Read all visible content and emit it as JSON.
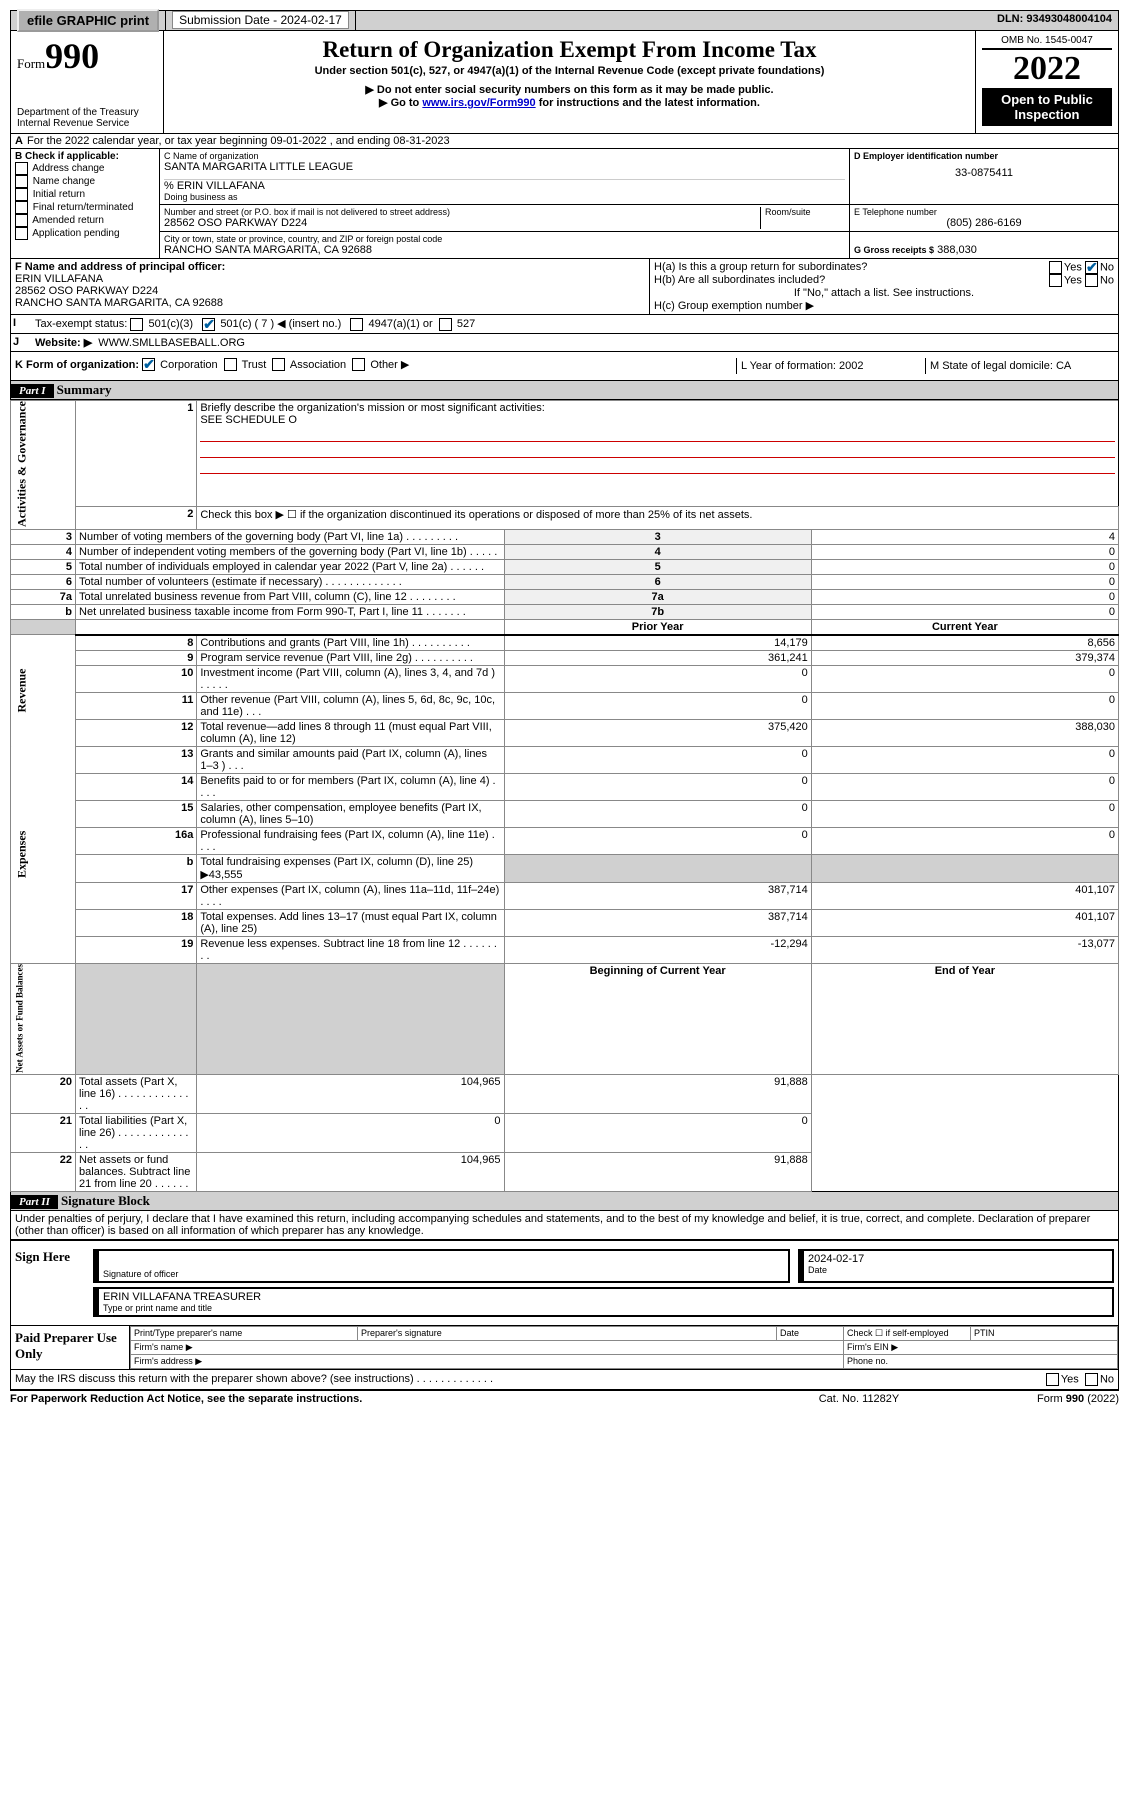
{
  "topbar": {
    "efile": "efile GRAPHIC print",
    "sub_label": "Submission Date - 2024-02-17",
    "dln": "DLN: 93493048004104"
  },
  "hdr": {
    "form_prefix": "Form",
    "form_num": "990",
    "dept": "Department of the Treasury",
    "irs": "Internal Revenue Service",
    "title": "Return of Organization Exempt From Income Tax",
    "sub1": "Under section 501(c), 527, or 4947(a)(1) of the Internal Revenue Code (except private foundations)",
    "sub2": "▶ Do not enter social security numbers on this form as it may be made public.",
    "sub3_pre": "▶ Go to ",
    "sub3_link": "www.irs.gov/Form990",
    "sub3_post": " for instructions and the latest information.",
    "omb": "OMB No. 1545-0047",
    "year": "2022",
    "open_pub": "Open to Public Inspection"
  },
  "blockA": {
    "line": "For the 2022 calendar year, or tax year beginning 09-01-2022    , and ending 08-31-2023",
    "prefix_A": "A"
  },
  "checkB": {
    "hdr": "B Check if applicable:",
    "opts": [
      "Address change",
      "Name change",
      "Initial return",
      "Final return/terminated",
      "Amended return",
      "Application pending"
    ]
  },
  "blockC": {
    "label_name": "C Name of organization",
    "org": "SANTA MARGARITA LITTLE LEAGUE",
    "care_of": "% ERIN VILLAFANA",
    "dba_lbl": "Doing business as",
    "addr_lbl": "Number and street (or P.O. box if mail is not delivered to street address)",
    "room_lbl": "Room/suite",
    "addr": "28562 OSO PARKWAY D224",
    "city_lbl": "City or town, state or province, country, and ZIP or foreign postal code",
    "city": "RANCHO SANTA MARGARITA, CA  92688"
  },
  "blockD": {
    "lbl": "D Employer identification number",
    "val": "33-0875411"
  },
  "blockE": {
    "lbl": "E Telephone number",
    "val": "(805) 286-6169"
  },
  "blockG": {
    "lbl": "G Gross receipts $",
    "val": "388,030"
  },
  "blockF": {
    "lbl": "F  Name and address of principal officer:",
    "name": "ERIN VILLAFANA",
    "addr1": "28562 OSO PARKWAY D224",
    "addr2": "RANCHO SANTA MARGARITA, CA  92688"
  },
  "blockH": {
    "a": "H(a)  Is this a group return for subordinates?",
    "b": "H(b)  Are all subordinates included?",
    "b_note": "If \"No,\" attach a list. See instructions.",
    "c": "H(c)  Group exemption number ▶",
    "yes": "Yes",
    "no": "No"
  },
  "blockI": {
    "lbl": "Tax-exempt status:",
    "o1": "501(c)(3)",
    "o2": "501(c) ( 7 ) ◀ (insert no.)",
    "o3": "4947(a)(1) or",
    "o4": "527",
    "prefix": "I"
  },
  "blockJ": {
    "lbl": "Website: ▶",
    "val": "WWW.SMLLBASEBALL.ORG",
    "prefix": "J"
  },
  "blockK": {
    "lbl": "K Form of organization:",
    "o1": "Corporation",
    "o2": "Trust",
    "o3": "Association",
    "o4": "Other ▶"
  },
  "blockL": {
    "lbl": "L Year of formation: 2002"
  },
  "blockM": {
    "lbl": "M State of legal domicile: CA"
  },
  "part1": {
    "title": "Part I",
    "name": "Summary",
    "side1": "Activities & Governance",
    "side2": "Revenue",
    "side3": "Expenses",
    "side4": "Net Assets or Fund Balances",
    "line1": "Briefly describe the organization's mission or most significant activities:",
    "line1val": "SEE SCHEDULE O",
    "line2": "Check this box ▶ ☐   if the organization discontinued its operations or disposed of more than 25% of its net assets.",
    "rows_gov": [
      {
        "n": "3",
        "t": "Number of voting members of the governing body (Part VI, line 1a)   .    .    .    .    .    .    .    .    .",
        "rn": "3",
        "v": "4"
      },
      {
        "n": "4",
        "t": "Number of independent voting members of the governing body (Part VI, line 1b)   .    .    .    .    .",
        "rn": "4",
        "v": "0"
      },
      {
        "n": "5",
        "t": "Total number of individuals employed in calendar year 2022 (Part V, line 2a)   .    .    .    .    .    .",
        "rn": "5",
        "v": "0"
      },
      {
        "n": "6",
        "t": "Total number of volunteers (estimate if necessary)   .    .    .    .    .    .    .    .    .    .    .    .    .",
        "rn": "6",
        "v": "0"
      },
      {
        "n": "7a",
        "t": "Total unrelated business revenue from Part VIII, column (C), line 12   .    .    .    .    .    .    .    .",
        "rn": "7a",
        "v": "0"
      },
      {
        "n": "b",
        "t": "Net unrelated business taxable income from Form 990-T, Part I, line 11   .    .    .    .    .    .    .",
        "rn": "7b",
        "v": "0"
      }
    ],
    "col_py": "Prior Year",
    "col_cy": "Current Year",
    "col_bcy": "Beginning of Current Year",
    "col_ey": "End of Year",
    "rows_rev": [
      {
        "n": "8",
        "t": "Contributions and grants (Part VIII, line 1h)   .    .    .    .    .    .    .    .    .    .",
        "py": "14,179",
        "cy": "8,656"
      },
      {
        "n": "9",
        "t": "Program service revenue (Part VIII, line 2g)   .    .    .    .    .    .    .    .    .    .",
        "py": "361,241",
        "cy": "379,374"
      },
      {
        "n": "10",
        "t": "Investment income (Part VIII, column (A), lines 3, 4, and 7d )   .    .    .    .    .",
        "py": "0",
        "cy": "0"
      },
      {
        "n": "11",
        "t": "Other revenue (Part VIII, column (A), lines 5, 6d, 8c, 9c, 10c, and 11e)   .    .    .",
        "py": "0",
        "cy": "0"
      },
      {
        "n": "12",
        "t": "Total revenue—add lines 8 through 11 (must equal Part VIII, column (A), line 12)",
        "py": "375,420",
        "cy": "388,030"
      }
    ],
    "rows_exp": [
      {
        "n": "13",
        "t": "Grants and similar amounts paid (Part IX, column (A), lines 1–3 )   .    .    .",
        "py": "0",
        "cy": "0"
      },
      {
        "n": "14",
        "t": "Benefits paid to or for members (Part IX, column (A), line 4)   .    .    .    .",
        "py": "0",
        "cy": "0"
      },
      {
        "n": "15",
        "t": "Salaries, other compensation, employee benefits (Part IX, column (A), lines 5–10)",
        "py": "0",
        "cy": "0"
      },
      {
        "n": "16a",
        "t": "Professional fundraising fees (Part IX, column (A), line 11e)   .    .    .    .",
        "py": "0",
        "cy": "0"
      },
      {
        "n": "b",
        "t": "Total fundraising expenses (Part IX, column (D), line 25) ▶43,555",
        "py": "",
        "cy": "",
        "shade": true
      },
      {
        "n": "17",
        "t": "Other expenses (Part IX, column (A), lines 11a–11d, 11f–24e)   .    .    .    .",
        "py": "387,714",
        "cy": "401,107"
      },
      {
        "n": "18",
        "t": "Total expenses. Add lines 13–17 (must equal Part IX, column (A), line 25)",
        "py": "387,714",
        "cy": "401,107"
      },
      {
        "n": "19",
        "t": "Revenue less expenses. Subtract line 18 from line 12   .    .    .    .    .    .    .    .",
        "py": "-12,294",
        "cy": "-13,077"
      }
    ],
    "rows_net": [
      {
        "n": "20",
        "t": "Total assets (Part X, line 16)   .    .    .    .    .    .    .    .    .    .    .    .    .    .",
        "py": "104,965",
        "cy": "91,888"
      },
      {
        "n": "21",
        "t": "Total liabilities (Part X, line 26)   .    .    .    .    .    .    .    .    .    .    .    .    .    .",
        "py": "0",
        "cy": "0"
      },
      {
        "n": "22",
        "t": "Net assets or fund balances. Subtract line 21 from line 20   .    .    .    .    .    .",
        "py": "104,965",
        "cy": "91,888"
      }
    ]
  },
  "part2": {
    "title": "Part II",
    "name": "Signature Block",
    "decl": "Under penalties of perjury, I declare that I have examined this return, including accompanying schedules and statements, and to the best of my knowledge and belief, it is true, correct, and complete. Declaration of preparer (other than officer) is based on all information of which preparer has any knowledge.",
    "sign_here": "Sign Here",
    "sig_of_officer": "Signature of officer",
    "sig_date": "Date",
    "sig_date_val": "2024-02-17",
    "name_title": "ERIN VILLAFANA  TREASURER",
    "type_name": "Type or print name and title",
    "paid": "Paid Preparer Use Only",
    "pt_name": "Print/Type preparer's name",
    "pt_sig": "Preparer's signature",
    "pt_date": "Date",
    "pt_check": "Check ☐ if self-employed",
    "ptin": "PTIN",
    "firm_name": "Firm's name    ▶",
    "firm_ein": "Firm's EIN ▶",
    "firm_addr": "Firm's address ▶",
    "phone": "Phone no.",
    "may_irs": "May the IRS discuss this return with the preparer shown above? (see instructions)   .    .    .    .    .    .    .    .    .    .    .    .    .",
    "pra": "For Paperwork Reduction Act Notice, see the separate instructions.",
    "cat": "Cat. No. 11282Y",
    "form_foot": "Form 990 (2022)"
  }
}
